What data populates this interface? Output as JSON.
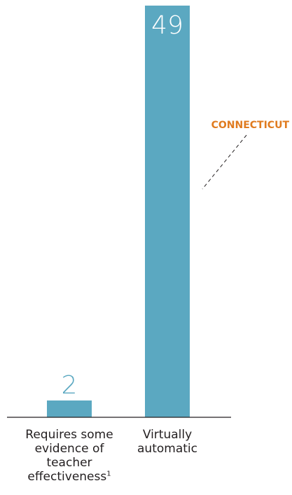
{
  "chart_data": {
    "type": "bar",
    "categories": [
      "Requires some evidence of teacher effectiveness",
      "Virtually automatic"
    ],
    "category_footnotes": [
      "1",
      ""
    ],
    "values": [
      2,
      49
    ],
    "data_labels": [
      "2",
      "49"
    ],
    "ylim": [
      0,
      49
    ],
    "grid": false,
    "legend": "none",
    "title": "",
    "xlabel": "",
    "ylabel": "",
    "annotation": {
      "text": "CONNECTICUT",
      "target_category": "Virtually automatic"
    },
    "colors": {
      "bar": "#5ba8c1",
      "label_inside": "#ffffff",
      "label_above": "#5ba8c1",
      "annotation": "#e07b1f",
      "axis": "#231f20",
      "text": "#231f20"
    }
  }
}
